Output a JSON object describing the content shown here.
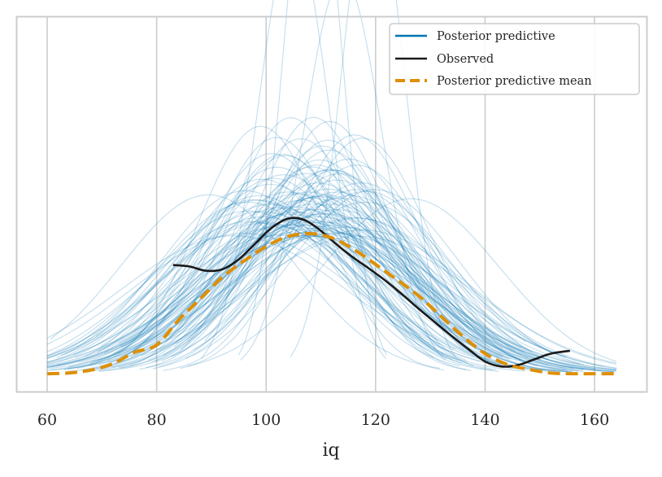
{
  "chart_data": {
    "type": "line",
    "title": "",
    "xlabel": "iq",
    "ylabel": "",
    "xlim": [
      54.5,
      169.5
    ],
    "ylim": [
      -0.0025,
      0.0499
    ],
    "xticks": [
      60,
      80,
      100,
      120,
      140,
      160
    ],
    "xtick_labels": [
      "60",
      "80",
      "100",
      "120",
      "140",
      "160"
    ],
    "show_yticks": false,
    "grid": "vertical",
    "legend": {
      "placement": "top-right",
      "entries": [
        {
          "label": "Posterior predictive",
          "color": "#0173b2",
          "style": "solid"
        },
        {
          "label": "Observed",
          "color": "#1a1a1a",
          "style": "solid"
        },
        {
          "label": "Posterior predictive mean",
          "color": "#de8f05",
          "style": "dashed"
        }
      ]
    },
    "colors": {
      "posterior_predictive": "#0173b2",
      "observed": "#1a1a1a",
      "mean": "#de8f05",
      "grid": "#cccccc",
      "frame": "#cccccc"
    },
    "series": [
      {
        "name": "Observed",
        "x": [
          83,
          86,
          89,
          92,
          95,
          98,
          101,
          104,
          107,
          110,
          113,
          116,
          119,
          122,
          125,
          128,
          131,
          134,
          137,
          140,
          143,
          146,
          149,
          152,
          155.5
        ],
        "y": [
          0.0152,
          0.015,
          0.0144,
          0.0146,
          0.016,
          0.0182,
          0.0204,
          0.0217,
          0.0215,
          0.02,
          0.018,
          0.0162,
          0.0146,
          0.0129,
          0.011,
          0.009,
          0.0071,
          0.0052,
          0.0034,
          0.0017,
          0.001,
          0.0012,
          0.002,
          0.0028,
          0.0032
        ]
      },
      {
        "name": "Posterior predictive mean",
        "x": [
          60,
          64,
          68,
          72,
          76,
          80,
          84,
          88,
          92,
          96,
          100,
          104,
          108,
          112,
          116,
          120,
          124,
          128,
          132,
          136,
          140,
          144,
          148,
          152,
          156,
          160,
          164
        ],
        "y": [
          0.0,
          0.0001,
          0.0005,
          0.0014,
          0.003,
          0.004,
          0.0075,
          0.0105,
          0.0135,
          0.0158,
          0.0178,
          0.0192,
          0.0196,
          0.019,
          0.0174,
          0.0153,
          0.0131,
          0.0108,
          0.008,
          0.0052,
          0.0028,
          0.0013,
          0.0006,
          0.0001,
          0.0,
          0.0,
          0.0
        ]
      },
      {
        "name": "Posterior predictive",
        "n_samples": 100,
        "sample_mean_range": [
          85,
          130
        ],
        "sample_sd_range": [
          8,
          22
        ],
        "tall_peaks": [
          {
            "mu": 108.5,
            "sd": 5.2
          },
          {
            "mu": 119.5,
            "sd": 5.8
          },
          {
            "mu": 105,
            "sd": 6.5
          },
          {
            "mu": 114,
            "sd": 7.2
          }
        ]
      }
    ]
  }
}
